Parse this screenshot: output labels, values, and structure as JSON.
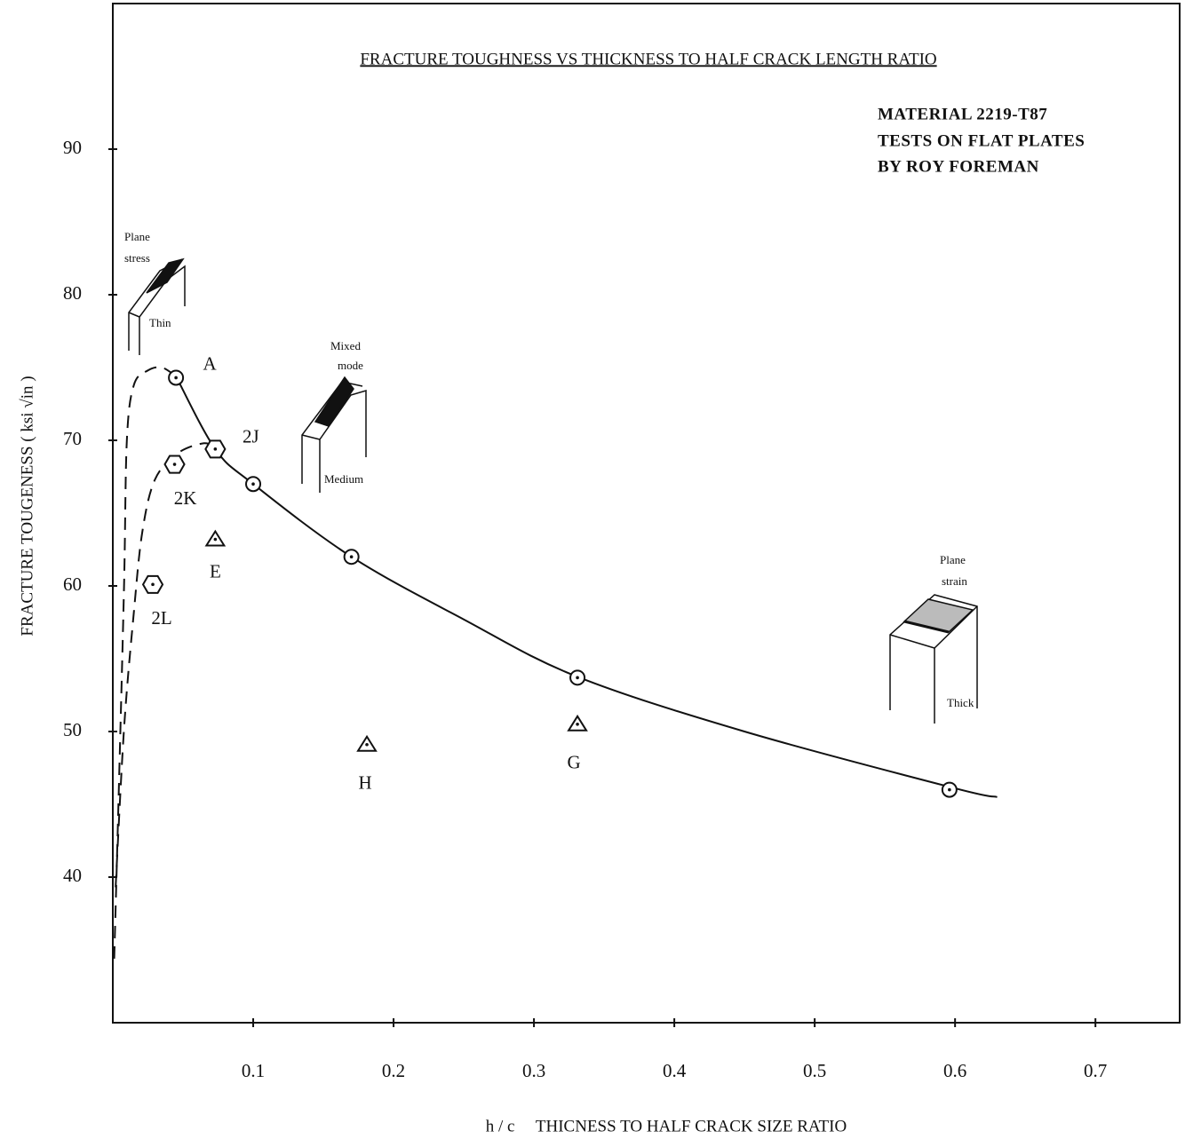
{
  "chart_data": {
    "type": "scatter",
    "title": "FRACTURE TOUGHNESS VS THICKNESS TO HALF CRACK LENGTH RATIO",
    "notes": [
      "MATERIAL  2219-T87",
      "TESTS ON FLAT PLATES",
      "BY ROY FOREMAN"
    ],
    "x_label": "h / c     THICNESS TO HALF CRACK SIZE RATIO",
    "y_label": "FRACTURE TOUGENESS ( ksi √in )",
    "xlim": [
      0,
      0.76
    ],
    "ylim": [
      30,
      100
    ],
    "xticks": [
      0.1,
      0.2,
      0.3,
      0.4,
      0.5,
      0.6,
      0.7
    ],
    "yticks": [
      40,
      50,
      60,
      70,
      80,
      90
    ],
    "grid": false,
    "color": "#111111",
    "series": [
      {
        "type": "line",
        "dash": false,
        "x": [
          0.045,
          0.073,
          0.1,
          0.17,
          0.25,
          0.33,
          0.45,
          0.6,
          0.63
        ],
        "values": [
          74.4,
          69.4,
          67.0,
          62.0,
          57.7,
          53.8,
          50.0,
          46.1,
          45.5
        ]
      },
      {
        "type": "line",
        "dash": true,
        "x": [
          0.001,
          0.004,
          0.008,
          0.01,
          0.015,
          0.025,
          0.035,
          0.045
        ],
        "values": [
          34.4,
          45,
          60,
          70,
          73.8,
          74.8,
          75,
          74.4
        ]
      },
      {
        "type": "line",
        "dash": true,
        "x": [
          0.002,
          0.008,
          0.015,
          0.021,
          0.03,
          0.046,
          0.065,
          0.073
        ],
        "values": [
          39.3,
          50.2,
          58.2,
          63.7,
          67.3,
          69.1,
          69.8,
          69.4
        ]
      },
      {
        "type": "scatter",
        "marker": "circle",
        "x": [
          0.045,
          0.1,
          0.17,
          0.331,
          0.596
        ],
        "values": [
          74.3,
          67.0,
          62.0,
          53.7,
          46.0
        ],
        "labels": [
          "A",
          null,
          null,
          null,
          null
        ]
      },
      {
        "type": "scatter",
        "marker": "hexagon",
        "x": [
          0.073,
          0.044,
          0.0285
        ],
        "values": [
          69.4,
          68.35,
          60.1
        ],
        "labels": [
          "2J",
          "2K",
          "2L"
        ]
      },
      {
        "type": "scatter",
        "marker": "triangle",
        "x": [
          0.073,
          0.181,
          0.331
        ],
        "values": [
          63.2,
          49.1,
          50.5
        ],
        "labels": [
          "E",
          "H",
          "G"
        ]
      }
    ],
    "sketches": [
      {
        "label": [
          "Plane",
          "stress"
        ],
        "size": "Thin"
      },
      {
        "label": [
          "Mixed",
          "mode"
        ],
        "size": "Medium"
      },
      {
        "label": [
          "Plane",
          "strain"
        ],
        "size": "Thick"
      }
    ]
  }
}
